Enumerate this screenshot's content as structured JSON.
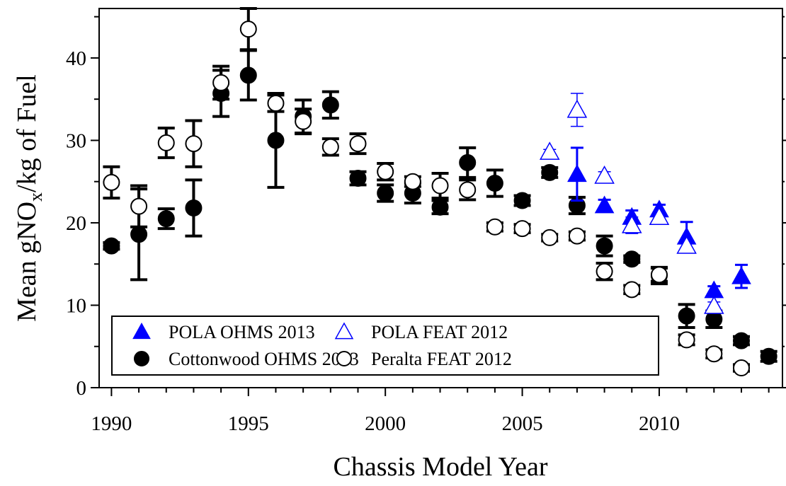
{
  "chart_data": {
    "type": "scatter",
    "x_label": "Chassis Model Year",
    "y_label": [
      "Mean gNO",
      "x",
      "/kg of Fuel"
    ],
    "xlim": [
      1989.55,
      2014.5
    ],
    "ylim": [
      0,
      46
    ],
    "xticks": [
      1990,
      1995,
      2000,
      2005,
      2010
    ],
    "yticks": [
      0,
      10,
      20,
      30,
      40
    ],
    "xminorticks": [
      1991,
      1992,
      1993,
      1994,
      1996,
      1997,
      1998,
      1999,
      2001,
      2002,
      2003,
      2004,
      2006,
      2007,
      2008,
      2009,
      2011,
      2012,
      2013,
      2014
    ],
    "yminorticks": [
      5,
      15,
      25,
      35,
      45
    ],
    "legend": "lower left",
    "series": [
      {
        "name": "POLA OHMS 2013",
        "color": "#0000ff",
        "marker": "triangle",
        "filled": true,
        "x": [
          2007,
          2008,
          2009,
          2010,
          2011,
          2012,
          2013
        ],
        "values": [
          25.9,
          22.1,
          20.7,
          21.6,
          18.3,
          11.8,
          13.5
        ],
        "errors": [
          3.2,
          0.7,
          0.8,
          0.6,
          1.8,
          0.5,
          1.4
        ]
      },
      {
        "name": "POLA FEAT 2012",
        "color": "#0000ff",
        "marker": "triangle",
        "filled": false,
        "x": [
          2006,
          2007,
          2008,
          2009,
          2010,
          2011,
          2012
        ],
        "values": [
          28.6,
          33.7,
          25.7,
          19.7,
          20.7,
          17.2,
          9.9
        ],
        "errors": [
          0.3,
          2.0,
          0.5,
          1.0,
          0.5,
          0.8,
          0.5
        ]
      },
      {
        "name": "Cottonwood OHMS 2013",
        "color": "#000000",
        "marker": "circle",
        "filled": true,
        "x": [
          1990,
          1991,
          1992,
          1993,
          1994,
          1995,
          1996,
          1997,
          1998,
          1999,
          2000,
          2001,
          2002,
          2003,
          2004,
          2005,
          2006,
          2007,
          2008,
          2009,
          2010,
          2011,
          2012,
          2013,
          2014
        ],
        "values": [
          17.2,
          18.6,
          20.5,
          21.8,
          35.7,
          37.9,
          30.0,
          32.9,
          34.3,
          25.4,
          23.6,
          23.6,
          21.9,
          27.3,
          24.8,
          22.7,
          26.1,
          22.1,
          17.2,
          15.6,
          13.6,
          8.7,
          8.3,
          5.7,
          3.8
        ],
        "errors": [
          0.4,
          5.5,
          1.2,
          3.4,
          2.8,
          3.0,
          5.7,
          2.0,
          1.6,
          0.8,
          1.0,
          1.2,
          0.8,
          1.8,
          1.6,
          0.6,
          0.6,
          1.0,
          1.2,
          0.4,
          1.0,
          1.4,
          1.0,
          0.5,
          0.6
        ]
      },
      {
        "name": "Peralta FEAT 2012",
        "color": "#000000",
        "marker": "circle",
        "filled": false,
        "x": [
          1990,
          1991,
          1992,
          1993,
          1994,
          1995,
          1996,
          1997,
          1998,
          1999,
          2000,
          2001,
          2002,
          2003,
          2004,
          2005,
          2006,
          2007,
          2008,
          2009,
          2010,
          2011,
          2012,
          2013
        ],
        "values": [
          24.9,
          22.0,
          29.7,
          29.6,
          37.0,
          43.5,
          34.5,
          32.3,
          29.2,
          29.6,
          26.2,
          25.0,
          24.5,
          24.0,
          19.5,
          19.3,
          18.2,
          18.4,
          14.1,
          11.9,
          13.7,
          5.8,
          4.1,
          2.4
        ],
        "errors": [
          1.9,
          2.5,
          1.8,
          2.8,
          2.0,
          2.5,
          1.0,
          1.5,
          1.0,
          1.2,
          1.0,
          0.6,
          1.5,
          1.2,
          0.5,
          0.5,
          0.4,
          0.5,
          1.0,
          0.5,
          0.8,
          0.6,
          0.5,
          0.4
        ]
      }
    ]
  }
}
